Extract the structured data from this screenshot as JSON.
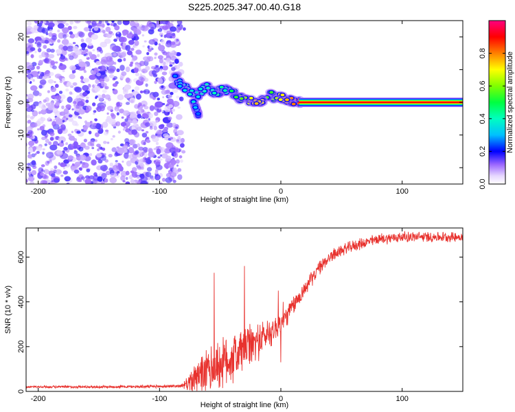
{
  "title": "S225.2025.347.00.40.G18",
  "chart_data": [
    {
      "type": "heatmap",
      "name": "spectrogram",
      "xlabel": "Height of straight line (km)",
      "ylabel": "Frequency (Hz)",
      "xlim": [
        -210,
        150
      ],
      "ylim": [
        -25,
        25
      ],
      "xticks": [
        -200,
        -100,
        0,
        100
      ],
      "yticks": [
        -20,
        -10,
        0,
        10,
        20
      ],
      "noise_region_x": [
        -210,
        -82
      ],
      "ridge": [
        {
          "x": -88,
          "y": 8.5,
          "v": 0.25
        },
        {
          "x": -85,
          "y": 6.5,
          "v": 0.3
        },
        {
          "x": -80,
          "y": 5,
          "v": 0.35
        },
        {
          "x": -76,
          "y": 3.5,
          "v": 0.4
        },
        {
          "x": -72,
          "y": 2.5,
          "v": 0.35
        },
        {
          "x": -68,
          "y": 2.5,
          "v": 0.35
        },
        {
          "x": -64,
          "y": 4,
          "v": 0.4
        },
        {
          "x": -60,
          "y": 4.5,
          "v": 0.4
        },
        {
          "x": -55,
          "y": 3,
          "v": 0.4
        },
        {
          "x": -50,
          "y": 3.5,
          "v": 0.45
        },
        {
          "x": -45,
          "y": 4,
          "v": 0.4
        },
        {
          "x": -40,
          "y": 3,
          "v": 0.5
        },
        {
          "x": -35,
          "y": 1.5,
          "v": 0.55
        },
        {
          "x": -30,
          "y": 1,
          "v": 0.6
        },
        {
          "x": -25,
          "y": 0.5,
          "v": 0.7
        },
        {
          "x": -20,
          "y": -0.5,
          "v": 0.75
        },
        {
          "x": -15,
          "y": 0.5,
          "v": 0.7
        },
        {
          "x": -10,
          "y": 2.5,
          "v": 0.5
        },
        {
          "x": -5,
          "y": 1.5,
          "v": 0.6
        },
        {
          "x": 0,
          "y": 1.5,
          "v": 0.7
        },
        {
          "x": 5,
          "y": 1,
          "v": 0.75
        },
        {
          "x": 10,
          "y": 0.5,
          "v": 0.8
        },
        {
          "x": 15,
          "y": 0.2,
          "v": 0.85
        },
        {
          "x": 20,
          "y": 0,
          "v": 0.95
        }
      ],
      "branch": [
        {
          "x": -72,
          "y": 0,
          "v": 0.35
        },
        {
          "x": -70,
          "y": -2,
          "v": 0.3
        },
        {
          "x": -68,
          "y": -4,
          "v": 0.25
        }
      ],
      "carrier": {
        "x_start": 15,
        "x_end": 150,
        "y": 0,
        "value": 1.0
      },
      "colorbar": {
        "label": "Normalized spectral amplitude",
        "range": [
          0,
          1
        ],
        "ticks": [
          0.0,
          0.2,
          0.4,
          0.6,
          0.8
        ],
        "tick_labels": [
          "0.0",
          "0.2",
          "0.4",
          "0.6",
          "0.8"
        ]
      }
    },
    {
      "type": "line",
      "name": "snr",
      "xlabel": "Height of straight line (km)",
      "ylabel": "SNR (10 * v/v)",
      "xlim": [
        -210,
        150
      ],
      "ylim": [
        0,
        730
      ],
      "xticks": [
        -200,
        -100,
        0,
        100
      ],
      "yticks": [
        0,
        200,
        400,
        600
      ],
      "color": "#e8322e",
      "trend": [
        {
          "x": -210,
          "y": 20
        },
        {
          "x": -150,
          "y": 20
        },
        {
          "x": -100,
          "y": 22
        },
        {
          "x": -80,
          "y": 25
        },
        {
          "x": -70,
          "y": 60
        },
        {
          "x": -60,
          "y": 90
        },
        {
          "x": -50,
          "y": 120
        },
        {
          "x": -40,
          "y": 150
        },
        {
          "x": -30,
          "y": 190
        },
        {
          "x": -20,
          "y": 220
        },
        {
          "x": -10,
          "y": 260
        },
        {
          "x": 0,
          "y": 300
        },
        {
          "x": 10,
          "y": 380
        },
        {
          "x": 20,
          "y": 460
        },
        {
          "x": 30,
          "y": 540
        },
        {
          "x": 40,
          "y": 600
        },
        {
          "x": 50,
          "y": 630
        },
        {
          "x": 60,
          "y": 650
        },
        {
          "x": 80,
          "y": 680
        },
        {
          "x": 100,
          "y": 690
        },
        {
          "x": 150,
          "y": 690
        }
      ],
      "noise": [
        {
          "x": -210,
          "a": 6
        },
        {
          "x": -82,
          "a": 8
        },
        {
          "x": -75,
          "a": 50
        },
        {
          "x": -60,
          "a": 120
        },
        {
          "x": -40,
          "a": 140
        },
        {
          "x": -20,
          "a": 100
        },
        {
          "x": 0,
          "a": 60
        },
        {
          "x": 20,
          "a": 40
        },
        {
          "x": 50,
          "a": 30
        },
        {
          "x": 150,
          "a": 25
        }
      ],
      "spikes": [
        {
          "x": -55,
          "y": 530
        },
        {
          "x": -30,
          "y": 560
        },
        {
          "x": -2,
          "y": 450
        },
        {
          "x": 0,
          "y": 130
        },
        {
          "x": 2,
          "y": 400
        }
      ]
    }
  ]
}
